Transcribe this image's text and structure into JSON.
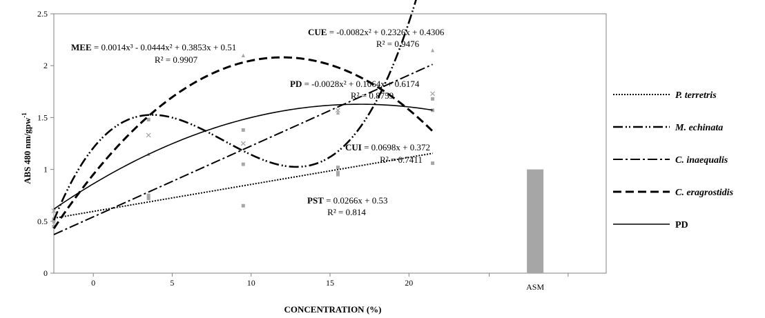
{
  "chart_data": {
    "type": "scatter",
    "ylabel": "ABS 480 nm/gpw",
    "ylabel_sup": "-1",
    "xlabel": "CONCENTRATION (%)",
    "x_ticks": [
      "0",
      "5",
      "10",
      "15",
      "20"
    ],
    "x_extra_category": "ASM",
    "y_ticks": [
      "0",
      "0.5",
      "1",
      "1.5",
      "2",
      "2.5"
    ],
    "xlim": [
      -2.5,
      32.5
    ],
    "ylim": [
      0,
      2.5
    ],
    "grid": false,
    "legend_position": "right",
    "series": [
      {
        "name": "P. terretris",
        "style": "dotted",
        "italic": true,
        "points": [
          [
            -2.5,
            0.51
          ],
          [
            3.5,
            0.72
          ],
          [
            9.5,
            0.65
          ],
          [
            15.5,
            0.95
          ],
          [
            21.5,
            1.06
          ]
        ],
        "fit": {
          "kind": "linear",
          "coef": [
            0.0266,
            0.53
          ]
        }
      },
      {
        "name": "M. echinata",
        "style": "dash-dot-dot",
        "italic": true,
        "points": [
          [
            -2.5,
            0.52
          ],
          [
            3.5,
            1.48
          ],
          [
            9.5,
            1.05
          ],
          [
            15.5,
            0.97
          ],
          [
            21.5,
            1.57
          ]
        ],
        "fit": {
          "kind": "cubic",
          "coef": [
            0.0014,
            -0.0444,
            0.3853,
            0.51
          ]
        }
      },
      {
        "name": "C. inaequalis",
        "style": "dash-dot",
        "italic": true,
        "points": [
          [
            -2.5,
            0.45
          ],
          [
            3.5,
            0.75
          ],
          [
            9.5,
            1.38
          ],
          [
            15.5,
            1.02
          ],
          [
            21.5,
            1.68
          ]
        ],
        "fit": {
          "kind": "linear",
          "coef": [
            0.0698,
            0.372
          ]
        }
      },
      {
        "name": "C. eragrostidis",
        "style": "dashed",
        "italic": true,
        "points": [
          [
            -2.5,
            0.5
          ],
          [
            3.5,
            1.15
          ],
          [
            9.5,
            2.1
          ],
          [
            15.5,
            1.55
          ],
          [
            21.5,
            2.15
          ]
        ],
        "fit": {
          "kind": "quadratic",
          "coef": [
            -0.0082,
            0.2326,
            0.4306
          ]
        }
      },
      {
        "name": "PD",
        "style": "solid",
        "italic": false,
        "points": [
          [
            -2.5,
            0.6
          ],
          [
            3.5,
            1.33
          ],
          [
            9.5,
            1.25
          ],
          [
            15.5,
            1.57
          ],
          [
            21.5,
            1.73
          ]
        ],
        "fit": {
          "kind": "quadratic",
          "coef": [
            -0.0028,
            0.1064,
            0.6174
          ]
        }
      }
    ],
    "asm_bar_value": 1.0,
    "annotations": [
      {
        "label": "MEE",
        "eq": " = 0.0014x³ - 0.0444x² + 0.3853x + 0.51",
        "r2": "R² = 0.9907"
      },
      {
        "label": "CUE",
        "eq": " = -0.0082x² + 0.2326x + 0.4306",
        "r2": "R² = 0.9476"
      },
      {
        "label": "PD",
        "eq": " = -0.0028x² + 0.1064x + 0.6174",
        "r2": "R² = 0.8759"
      },
      {
        "label": "CUI",
        "eq": " = 0.0698x + 0.372",
        "r2": "R² = 0.7411"
      },
      {
        "label": "PST",
        "eq": " = 0.0266x + 0.53",
        "r2": "R² = 0.814"
      }
    ],
    "colors": {
      "bar": "#a6a6a6",
      "points": "#a6a6a6",
      "lines": "#000000"
    }
  }
}
